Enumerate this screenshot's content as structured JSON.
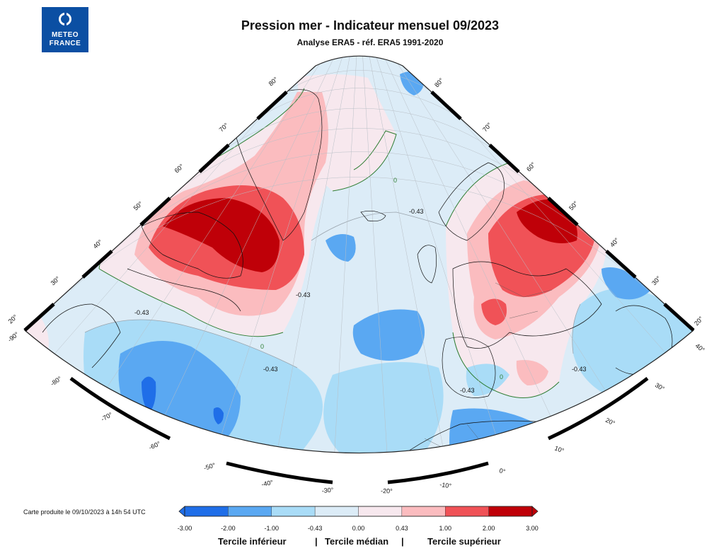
{
  "header": {
    "logo_line1": "METEO",
    "logo_line2": "FRANCE",
    "title": "Pression mer - Indicateur mensuel 09/2023",
    "subtitle": "Analyse ERA5 - réf. ERA5 1991-2020"
  },
  "map": {
    "meridian_labels_left": [
      "80°",
      "70°",
      "60°",
      "50°",
      "40°",
      "30°",
      "20°"
    ],
    "meridian_labels_right": [
      "80°",
      "70°",
      "60°",
      "50°",
      "40°",
      "30°",
      "20°"
    ],
    "longitude_labels": [
      "-90°",
      "-80°",
      "-70°",
      "-60°",
      "-50°",
      "-40°",
      "-30°",
      "-20°",
      "-10°",
      "0°",
      "10°",
      "20°",
      "30°",
      "40°"
    ],
    "contour_labels": [
      "-0.43",
      "-0.43",
      "-0.43",
      "-0.43",
      "-0.43",
      "-0.43",
      "0",
      "0",
      "0"
    ]
  },
  "footer": {
    "credit": "Carte produite le 09/10/2023 à 14h 54 UTC"
  },
  "colorbar": {
    "ticks": [
      "-3.00",
      "-2.00",
      "-1.00",
      "-0.43",
      "0.00",
      "0.43",
      "1.00",
      "2.00",
      "3.00"
    ],
    "colors": [
      "#1f6ee8",
      "#5aa8f2",
      "#a9dcf7",
      "#dcecf7",
      "#f7e8ee",
      "#fbbcbf",
      "#f05257",
      "#bf0008"
    ],
    "group_lower": "Tercile inférieur",
    "group_middle": "Tercile médian",
    "group_upper": "Tercile supérieur",
    "separator": "|"
  }
}
